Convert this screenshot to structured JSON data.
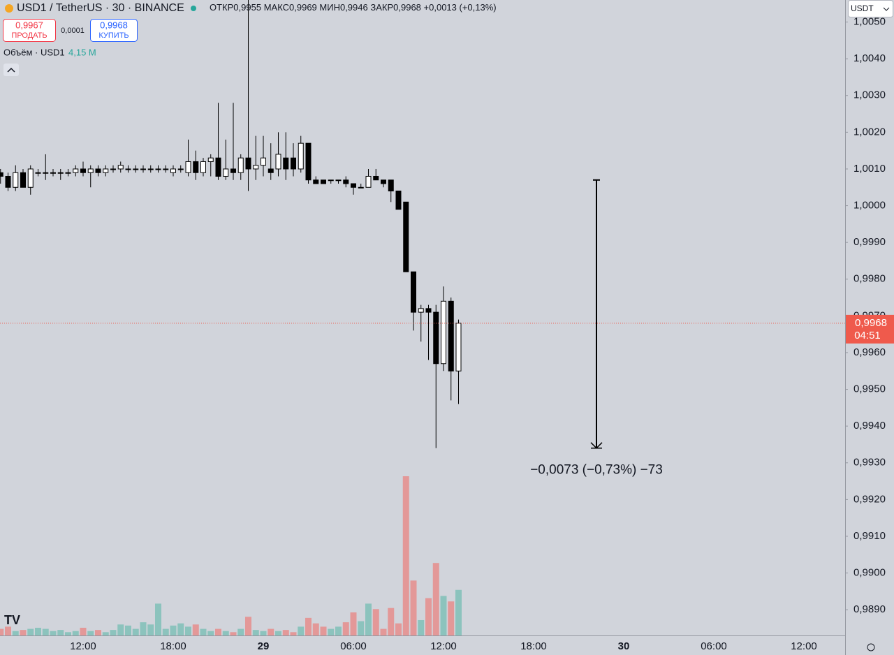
{
  "header": {
    "symbol": "USD1 / TetherUS · 30 · BINANCE",
    "ohlc": [
      {
        "label": "ОТКР",
        "value": "0,9955"
      },
      {
        "label": "МАКС",
        "value": "0,9969"
      },
      {
        "label": "МИН",
        "value": "0,9946"
      },
      {
        "label": "ЗАКР",
        "value": "0,9968"
      }
    ],
    "change": "+0,0013 (+0,13%)"
  },
  "trade": {
    "sell_price": "0,9967",
    "sell": "ПРОДАТЬ",
    "spread": "0,0001",
    "buy_price": "0,9968",
    "buy": "КУПИТЬ"
  },
  "volume_legend": {
    "title": "Объём · USD1",
    "value": "4,15 M"
  },
  "currency": "USDT",
  "chart_data": {
    "type": "candlestick",
    "categories": [
      null,
      null,
      null,
      null,
      null,
      null,
      null,
      null,
      null,
      null,
      null,
      "12:00",
      null,
      null,
      null,
      null,
      null,
      null,
      null,
      null,
      null,
      null,
      null,
      "18:00",
      null,
      null,
      null,
      null,
      null,
      null,
      null,
      null,
      null,
      null,
      null,
      "29",
      null,
      null,
      null,
      null,
      null,
      null,
      null,
      null,
      null,
      null,
      null,
      "06:00",
      null,
      null,
      null,
      null,
      null,
      null,
      null,
      null,
      null,
      null,
      null,
      "12:00",
      null,
      null,
      null,
      null,
      null,
      null,
      null,
      null,
      null,
      null,
      null,
      "18:00",
      null,
      null,
      null,
      null,
      null,
      null,
      null,
      null,
      null,
      null,
      null,
      "30",
      null,
      null,
      null,
      null,
      null,
      null,
      null,
      null,
      null,
      null,
      null,
      "06:00",
      null,
      null,
      null,
      null,
      null,
      null,
      null,
      null,
      null,
      null,
      null,
      "12:00",
      null,
      null,
      null,
      null,
      null
    ],
    "open": [
      1.0009,
      1.0008,
      1.0005,
      1.0009,
      1.0005,
      1.0009,
      1.0009,
      1.0009,
      1.0009,
      1.0009,
      1.0009,
      1.001,
      1.0009,
      1.001,
      1.0009,
      1.001,
      1.001,
      1.001,
      1.001,
      1.001,
      1.001,
      1.001,
      1.001,
      1.0009,
      1.001,
      1.0009,
      1.0012,
      1.0009,
      1.0012,
      1.0013,
      1.0008,
      1.001,
      1.0009,
      1.0013,
      1.001,
      1.0011,
      1.001,
      1.001,
      1.0013,
      1.0013,
      1.001,
      1.0017,
      1.0007,
      1.0007,
      1.0007,
      1.0007,
      1.0007,
      1.0006,
      1.0005,
      1.0005,
      1.0008,
      1.0007,
      1.0007,
      1.0004,
      1.0001,
      0.9982,
      0.9971,
      0.9972,
      0.9971,
      0.9957,
      0.9974,
      0.9955,
      null,
      null,
      null,
      null,
      null,
      null,
      null,
      null,
      null,
      null,
      null,
      null,
      null,
      null,
      null,
      null,
      null,
      null,
      null,
      null,
      null,
      null,
      null,
      null,
      null,
      null,
      null,
      null,
      null,
      null,
      null,
      null,
      null,
      null,
      null,
      null,
      null,
      null,
      null,
      null,
      null,
      null,
      null,
      null,
      null,
      null,
      null,
      null,
      null,
      null,
      null
    ],
    "high": [
      1.001,
      1.0009,
      1.0011,
      1.001,
      1.0011,
      1.001,
      1.0014,
      1.001,
      1.001,
      1.001,
      1.0011,
      1.0012,
      1.0011,
      1.0011,
      1.0011,
      1.0011,
      1.0012,
      1.0011,
      1.0011,
      1.0011,
      1.0011,
      1.0011,
      1.0011,
      1.0011,
      1.0011,
      1.0018,
      1.0015,
      1.0013,
      1.0014,
      1.0028,
      1.0018,
      1.0028,
      1.0014,
      1.0056,
      1.0019,
      1.0019,
      1.0017,
      1.002,
      1.002,
      1.0017,
      1.0019,
      1.0017,
      1.0008,
      1.0007,
      1.0007,
      1.0007,
      1.0008,
      1.0006,
      1.0006,
      1.001,
      1.001,
      1.0007,
      1.0007,
      1.0004,
      1.0001,
      0.9982,
      0.9973,
      0.9973,
      0.9973,
      0.9978,
      0.9975,
      0.9969,
      null,
      null,
      null,
      null,
      null,
      null,
      null,
      null,
      null,
      null,
      null,
      null,
      null,
      null,
      null,
      null,
      null,
      null,
      null,
      null,
      null,
      null,
      null,
      null,
      null,
      null,
      null,
      null,
      null,
      null,
      null,
      null,
      null,
      null,
      null,
      null,
      null,
      null,
      null,
      null,
      null,
      null,
      null,
      null,
      null,
      null,
      null,
      null,
      null,
      null,
      null
    ],
    "low": [
      1.0006,
      1.0004,
      1.0004,
      1.0005,
      1.0003,
      1.0008,
      1.0007,
      1.0008,
      1.0007,
      1.0008,
      1.0008,
      1.0008,
      1.0005,
      1.0008,
      1.0008,
      1.0009,
      1.0009,
      1.0009,
      1.0009,
      1.0009,
      1.0009,
      1.0009,
      1.0009,
      1.0008,
      1.0009,
      1.0008,
      1.0007,
      1.0008,
      1.0008,
      1.0007,
      1.0007,
      1.0007,
      1.0007,
      1.0004,
      1.0007,
      1.0008,
      1.0007,
      1.0008,
      1.0007,
      1.0008,
      1.0009,
      1.0006,
      1.0006,
      1.0006,
      1.0006,
      1.0006,
      1.0005,
      1.0003,
      1.0005,
      1.0005,
      1.0007,
      1.0005,
      1.0001,
      0.9999,
      0.9982,
      0.9966,
      0.9963,
      0.9958,
      0.9934,
      0.9955,
      0.9947,
      0.9946,
      null,
      null,
      null,
      null,
      null,
      null,
      null,
      null,
      null,
      null,
      null,
      null,
      null,
      null,
      null,
      null,
      null,
      null,
      null,
      null,
      null,
      null,
      null,
      null,
      null,
      null,
      null,
      null,
      null,
      null,
      null,
      null,
      null,
      null,
      null,
      null,
      null,
      null,
      null,
      null,
      null,
      null,
      null,
      null,
      null,
      null,
      null,
      null,
      null,
      null,
      null
    ],
    "close": [
      1.0008,
      1.0005,
      1.0009,
      1.0005,
      1.001,
      1.0009,
      1.0009,
      1.0009,
      1.0009,
      1.0009,
      1.001,
      1.0009,
      1.001,
      1.0009,
      1.001,
      1.001,
      1.0011,
      1.001,
      1.001,
      1.001,
      1.001,
      1.001,
      1.001,
      1.001,
      1.001,
      1.0012,
      1.0009,
      1.0012,
      1.0013,
      1.0008,
      1.001,
      1.0009,
      1.0013,
      1.001,
      1.0011,
      1.0013,
      1.0009,
      1.0014,
      1.001,
      1.001,
      1.0017,
      1.0007,
      1.0006,
      1.0006,
      1.0007,
      1.0007,
      1.0006,
      1.0005,
      1.0005,
      1.0008,
      1.0007,
      1.0006,
      1.0004,
      0.9999,
      0.9982,
      0.9971,
      0.9972,
      0.9971,
      0.9957,
      0.9974,
      0.9955,
      0.9968,
      null,
      null,
      null,
      null,
      null,
      null,
      null,
      null,
      null,
      null,
      null,
      null,
      null,
      null,
      null,
      null,
      null,
      null,
      null,
      null,
      null,
      null,
      null,
      null,
      null,
      null,
      null,
      null,
      null,
      null,
      null,
      null,
      null,
      null,
      null,
      null,
      null,
      null,
      null,
      null,
      null,
      null,
      null,
      null,
      null,
      null,
      null,
      null,
      null,
      null,
      null
    ],
    "volume": [
      0.6,
      0.8,
      0.4,
      0.5,
      0.6,
      0.7,
      0.6,
      0.4,
      0.5,
      0.3,
      0.4,
      0.7,
      0.4,
      0.5,
      0.3,
      0.5,
      1.0,
      0.9,
      0.6,
      1.2,
      1.0,
      2.9,
      0.6,
      0.9,
      1.1,
      0.8,
      1.0,
      0.6,
      0.4,
      0.6,
      0.4,
      0.3,
      0.6,
      1.7,
      0.5,
      0.4,
      0.6,
      0.4,
      0.5,
      0.3,
      0.8,
      1.6,
      1.1,
      0.8,
      0.6,
      0.8,
      1.2,
      2.1,
      1.3,
      2.9,
      2.4,
      0.6,
      2.5,
      1.1,
      14.5,
      5.0,
      1.4,
      3.4,
      6.6,
      3.6,
      3.1,
      4.15,
      null,
      null,
      null,
      null,
      null,
      null,
      null,
      null,
      null,
      null,
      null,
      null,
      null,
      null,
      null,
      null,
      null,
      null,
      null,
      null,
      null,
      null,
      null,
      null,
      null,
      null,
      null,
      null,
      null,
      null,
      null,
      null,
      null,
      null,
      null,
      null,
      null,
      null,
      null,
      null,
      null,
      null,
      null,
      null,
      null,
      null,
      null,
      null,
      null,
      null,
      null
    ],
    "up_color": "#ffffff",
    "down_color": "#000000",
    "volume_up_color": "#8cc3bd",
    "volume_down_color": "#e39898",
    "ylim": [
      0.9883,
      1.0056
    ],
    "yticks": [
      {
        "value": 1.005,
        "label": "1,0050"
      },
      {
        "value": 1.004,
        "label": "1,0040"
      },
      {
        "value": 1.003,
        "label": "1,0030"
      },
      {
        "value": 1.002,
        "label": "1,0020"
      },
      {
        "value": 1.001,
        "label": "1,0010"
      },
      {
        "value": 1.0,
        "label": "1,0000"
      },
      {
        "value": 0.999,
        "label": "0,9990"
      },
      {
        "value": 0.998,
        "label": "0,9980"
      },
      {
        "value": 0.997,
        "label": "0,9970"
      },
      {
        "value": 0.996,
        "label": "0,9960"
      },
      {
        "value": 0.995,
        "label": "0,9950"
      },
      {
        "value": 0.994,
        "label": "0,9940"
      },
      {
        "value": 0.993,
        "label": "0,9930"
      },
      {
        "value": 0.992,
        "label": "0,9920"
      },
      {
        "value": 0.991,
        "label": "0,9910"
      },
      {
        "value": 0.99,
        "label": "0,9900"
      },
      {
        "value": 0.989,
        "label": "0,9890"
      }
    ],
    "price_line": {
      "value": 0.9968,
      "label": "0,9968",
      "countdown": "04:51",
      "color": "#ef5a4c"
    },
    "measure": {
      "from": 1.0007,
      "to": 0.9934,
      "label": "−0,0073 (−0,73%) −73"
    }
  }
}
